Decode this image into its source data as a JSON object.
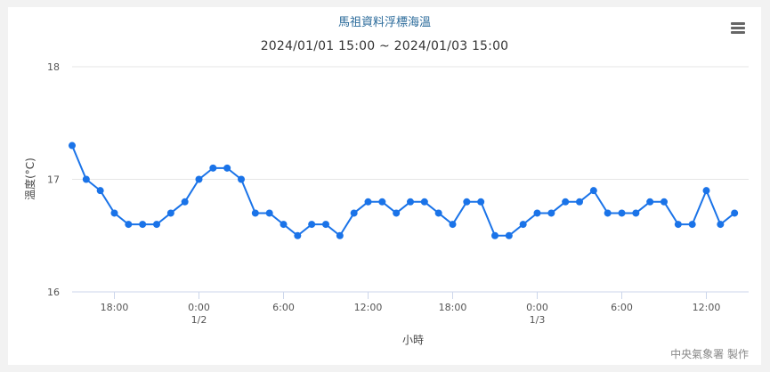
{
  "chart_data": {
    "type": "line",
    "title": "馬祖資料浮標海溫",
    "subtitle": "2024/01/01 15:00 ~ 2024/01/03 15:00",
    "ylabel": "溫度(°C)",
    "xlabel": "小時",
    "ylim": [
      16,
      18
    ],
    "yticks": [
      "16",
      "17",
      "18"
    ],
    "xlim": [
      15,
      63
    ],
    "xticks": [
      {
        "x": 18,
        "label": "18:00",
        "sub": ""
      },
      {
        "x": 24,
        "label": "0:00",
        "sub": "1/2"
      },
      {
        "x": 30,
        "label": "6:00",
        "sub": ""
      },
      {
        "x": 36,
        "label": "12:00",
        "sub": ""
      },
      {
        "x": 42,
        "label": "18:00",
        "sub": ""
      },
      {
        "x": 48,
        "label": "0:00",
        "sub": "1/3"
      },
      {
        "x": 54,
        "label": "6:00",
        "sub": ""
      },
      {
        "x": 60,
        "label": "12:00",
        "sub": ""
      }
    ],
    "color": "#1a73e8",
    "grid": true,
    "legend": "none",
    "series": [
      {
        "values": [
          17.3,
          17.0,
          16.9,
          16.7,
          16.6,
          16.6,
          16.6,
          16.7,
          16.8,
          17.0,
          17.1,
          17.1,
          17.0,
          16.7,
          16.7,
          16.6,
          16.5,
          16.6,
          16.6,
          16.5,
          16.7,
          16.8,
          16.8,
          16.7,
          16.8,
          16.8,
          16.7,
          16.6,
          16.8,
          16.8,
          16.5,
          16.5,
          16.6,
          16.7,
          16.7,
          16.8,
          16.8,
          16.9,
          16.7,
          16.7,
          16.7,
          16.8,
          16.8,
          16.6,
          16.6,
          16.9,
          16.6,
          16.7
        ]
      }
    ]
  },
  "credit": "中央氣象署 製作",
  "menu_icon": "hamburger-menu-icon"
}
